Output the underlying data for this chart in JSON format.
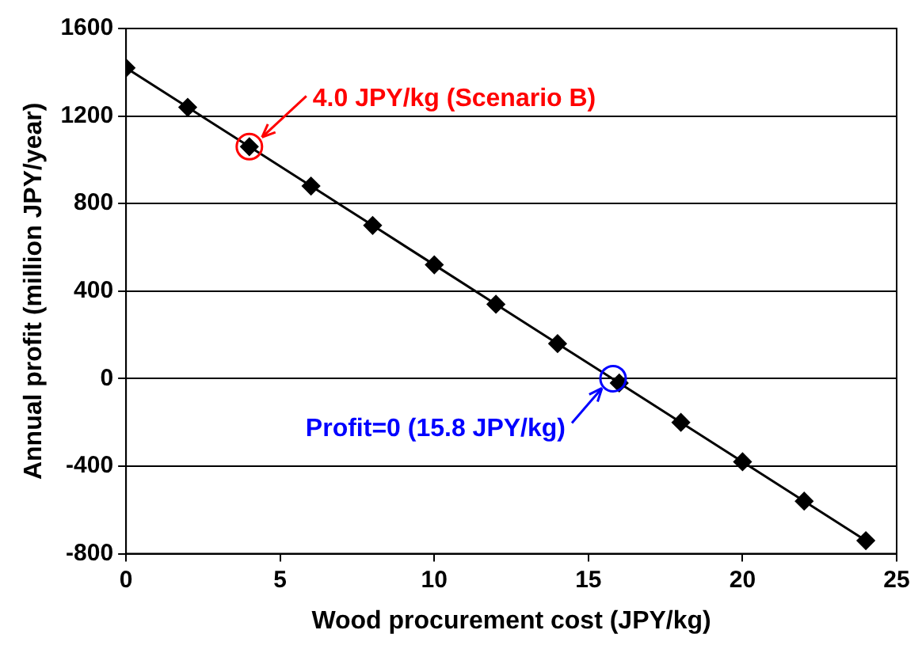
{
  "chart_data": {
    "type": "line",
    "xlabel": "Wood procurement cost (JPY/kg)",
    "ylabel": "Annual profit (million JPY/year)",
    "x": [
      0,
      2,
      4,
      6,
      8,
      10,
      12,
      14,
      16,
      18,
      20,
      22,
      24
    ],
    "series": [
      {
        "color": "#000000",
        "values": [
          1420,
          1240,
          1060,
          880,
          700,
          520,
          340,
          160,
          -20,
          -200,
          -380,
          -560,
          -740
        ]
      }
    ],
    "xlim": [
      0,
      25
    ],
    "xticks": [
      0,
      5,
      10,
      15,
      20,
      25
    ],
    "ylim": [
      -800,
      1600
    ],
    "yticks": [
      -800,
      -400,
      0,
      400,
      800,
      1200,
      1600
    ],
    "grid": "y",
    "legend": false,
    "marker": "diamond",
    "line_style": "solid",
    "annotations": [
      {
        "text": "4.0 JPY/kg (Scenario B)",
        "x": 4,
        "y": 1060
      },
      {
        "text": "Profit=0 (15.8 JPY/kg)",
        "x": 15.8,
        "y": 0
      }
    ]
  }
}
